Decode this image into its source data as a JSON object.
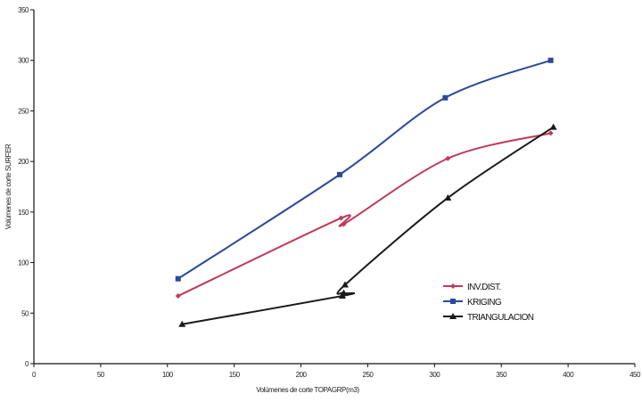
{
  "chart_data": {
    "type": "line",
    "title": "",
    "xlabel": "Volúmenes de corte TOPAGRP(m3)",
    "ylabel": "Volúmenes de corte SURFER",
    "xlim": [
      0,
      450
    ],
    "ylim": [
      0,
      350
    ],
    "xticks": [
      0,
      50,
      100,
      150,
      200,
      250,
      300,
      350,
      400,
      450
    ],
    "yticks": [
      0,
      50,
      100,
      150,
      200,
      250,
      300,
      350
    ],
    "grid": false,
    "legend_position": "bottom-right",
    "series": [
      {
        "name": "INV.DIST.",
        "color": "#c0395a",
        "marker": "diamond",
        "x": [
          108,
          230,
          232,
          310,
          387
        ],
        "y": [
          67,
          144,
          138,
          203,
          228
        ]
      },
      {
        "name": "KRIGING",
        "color": "#2a4a9a",
        "marker": "square",
        "x": [
          108,
          229,
          308,
          387
        ],
        "y": [
          84,
          187,
          263,
          300
        ]
      },
      {
        "name": "TRIANGULACION",
        "color": "#1a1a1a",
        "marker": "triangle",
        "x": [
          111,
          231,
          232,
          233,
          310,
          389
        ],
        "y": [
          39,
          67,
          70,
          78,
          164,
          234
        ]
      }
    ]
  }
}
